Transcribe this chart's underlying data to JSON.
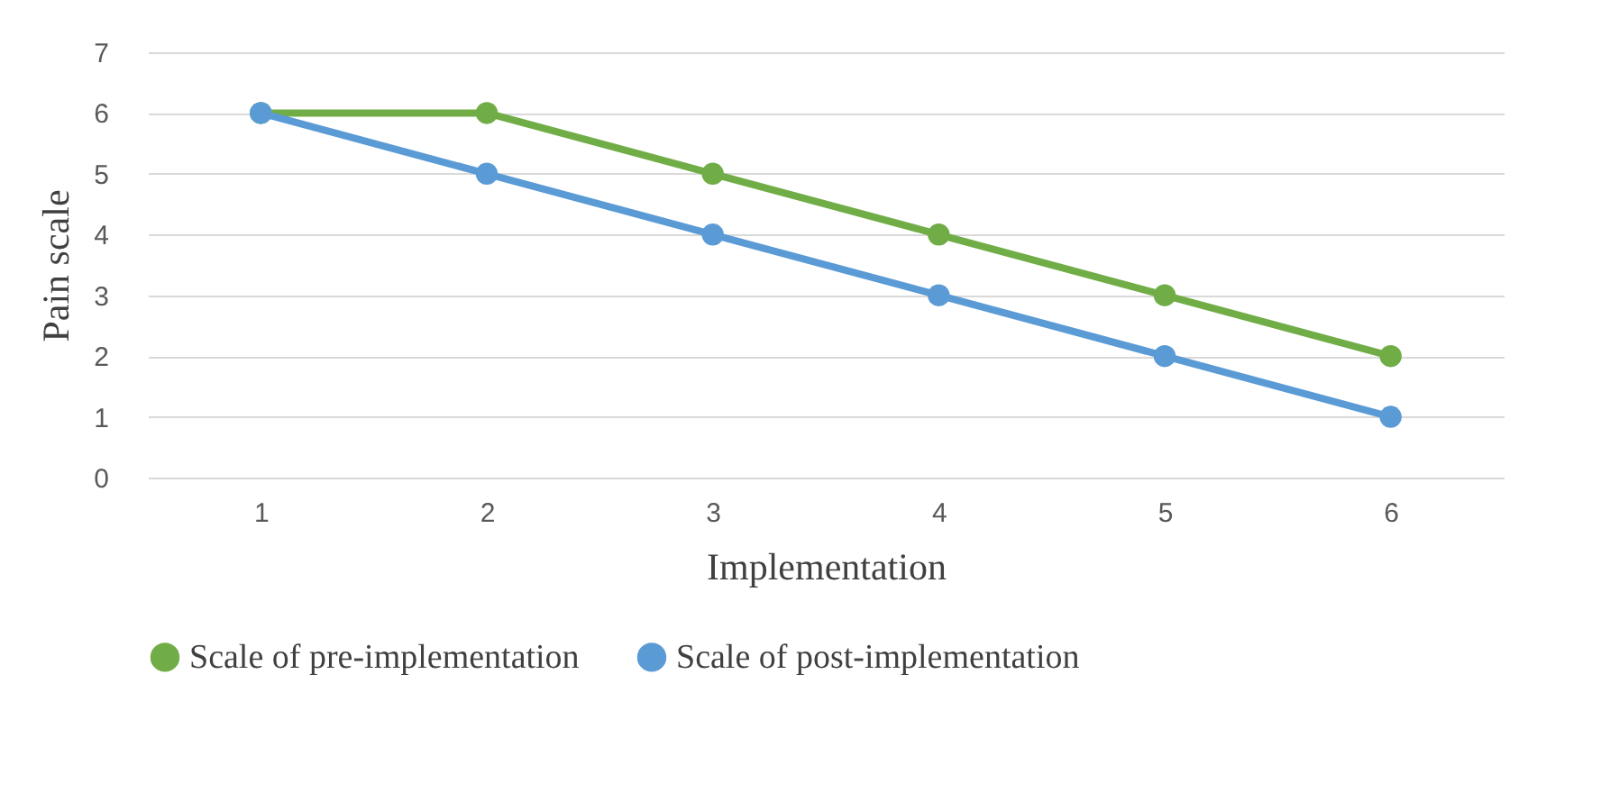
{
  "chart_data": {
    "type": "line",
    "xlabel": "Implementation",
    "ylabel": "Pain scale",
    "categories": [
      "1",
      "2",
      "3",
      "4",
      "5",
      "6"
    ],
    "series": [
      {
        "name": "Scale of pre-implementation",
        "color": "#70ad47",
        "values": [
          6,
          6,
          5,
          4,
          3,
          2
        ]
      },
      {
        "name": "Scale of post-implementation",
        "color": "#5b9bd5",
        "values": [
          6,
          5,
          4,
          3,
          2,
          1
        ]
      }
    ],
    "ylim": [
      0,
      7
    ],
    "yticks": [
      0,
      1,
      2,
      3,
      4,
      5,
      6,
      7
    ],
    "grid": "y",
    "legend": "bottom",
    "marker": "circle",
    "line_style": "solid"
  }
}
